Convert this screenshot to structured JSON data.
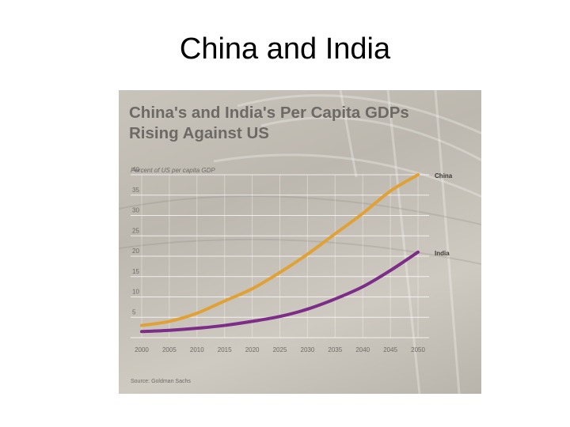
{
  "slide": {
    "title": "China and India"
  },
  "colors": {
    "panel": "#c6c1b8",
    "china": "#e0a236",
    "india": "#7b2d88",
    "grid": "#ffffff",
    "text": "#6d6a66"
  },
  "chart_data": {
    "type": "line",
    "title_lines": [
      "China's and India's Per Capita GDPs",
      "Rising Against US"
    ],
    "ylabel": "Percent of US per capita GDP",
    "xlabel": "",
    "x": [
      2000,
      2005,
      2010,
      2015,
      2020,
      2025,
      2030,
      2035,
      2040,
      2045,
      2050
    ],
    "x_tick_labels": [
      "2000",
      "2005",
      "2010",
      "2015",
      "2020",
      "2025",
      "2030",
      "2035",
      "2040",
      "2045",
      "2050"
    ],
    "y_ticks": [
      5,
      10,
      15,
      20,
      25,
      30,
      35,
      40
    ],
    "y_tick_labels": [
      "5",
      "10",
      "15",
      "20",
      "25",
      "30",
      "35",
      "40"
    ],
    "ylim": [
      0,
      40
    ],
    "xlim": [
      1998,
      2052
    ],
    "grid": true,
    "series": [
      {
        "name": "China",
        "values": [
          3,
          4,
          6,
          9,
          12,
          16,
          20.5,
          25.5,
          30.5,
          36,
          40
        ]
      },
      {
        "name": "India",
        "values": [
          1.5,
          1.8,
          2.3,
          3,
          4,
          5.2,
          7,
          9.5,
          12.5,
          16.5,
          21
        ]
      }
    ],
    "source": "Source: Goldman Sachs"
  }
}
